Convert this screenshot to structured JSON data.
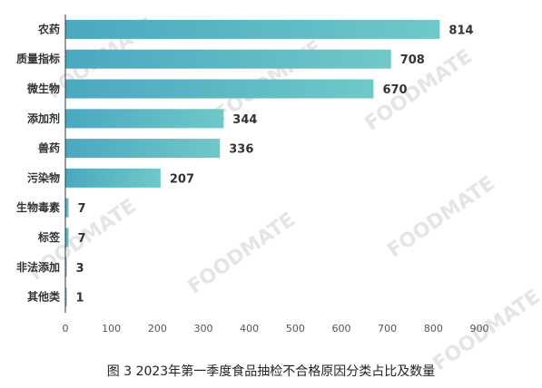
{
  "caption": "图 3  2023年第一季度食品抽检不合格原因分类占比及数量",
  "watermark": "FOODMATE",
  "colors": {
    "bar_start": "#4aa8c0",
    "bar_end": "#6fc8c8",
    "axis": "#333333"
  },
  "chart_data": {
    "type": "bar",
    "orientation": "horizontal",
    "categories": [
      "农药",
      "质量指标",
      "微生物",
      "添加剂",
      "兽药",
      "污染物",
      "生物毒素",
      "标签",
      "非法添加",
      "其他类"
    ],
    "values": [
      814,
      708,
      670,
      344,
      336,
      207,
      7,
      7,
      3,
      1
    ],
    "xlim": [
      0,
      900
    ],
    "xticks": [
      0,
      100,
      200,
      300,
      400,
      500,
      600,
      700,
      800,
      900
    ],
    "grid": false,
    "title": "",
    "xlabel": "",
    "ylabel": ""
  }
}
